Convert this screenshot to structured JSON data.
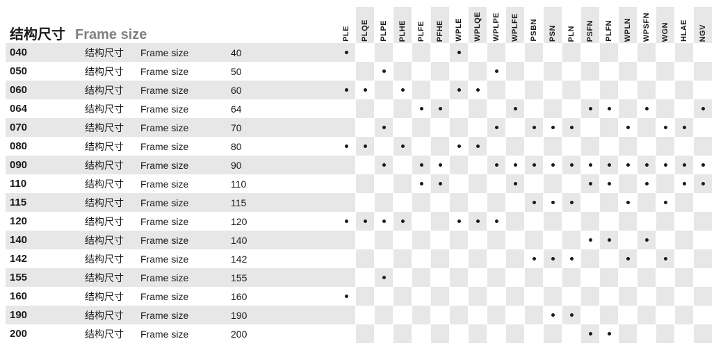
{
  "colors": {
    "zebra_light": "#ffffff",
    "zebra_dark": "#e7e7e7",
    "text": "#1a1a1a",
    "subtitle": "#808080",
    "dot": "#1a1a1a",
    "cell_border": "#ffffff"
  },
  "title": {
    "cn": "结构尺寸",
    "en": "Frame size"
  },
  "row_label": {
    "cn": "结构尺寸",
    "en": "Frame size"
  },
  "columns": [
    "PLE",
    "PLQE",
    "PLPE",
    "PLHE",
    "PLFE",
    "PFHE",
    "WPLE",
    "WPLQE",
    "WPLPE",
    "WPLFE",
    "PSBN",
    "PSN",
    "PLN",
    "PSFN",
    "PLFN",
    "WPLN",
    "WPSFN",
    "WGN",
    "HLAE",
    "NGV"
  ],
  "rows": [
    {
      "code": "040",
      "value": "40",
      "dots": [
        1,
        0,
        0,
        0,
        0,
        0,
        1,
        0,
        0,
        0,
        0,
        0,
        0,
        0,
        0,
        0,
        0,
        0,
        0,
        0
      ]
    },
    {
      "code": "050",
      "value": "50",
      "dots": [
        0,
        0,
        1,
        0,
        0,
        0,
        0,
        0,
        1,
        0,
        0,
        0,
        0,
        0,
        0,
        0,
        0,
        0,
        0,
        0
      ]
    },
    {
      "code": "060",
      "value": "60",
      "dots": [
        1,
        1,
        0,
        1,
        0,
        0,
        1,
        1,
        0,
        0,
        0,
        0,
        0,
        0,
        0,
        0,
        0,
        0,
        0,
        0
      ]
    },
    {
      "code": "064",
      "value": "64",
      "dots": [
        0,
        0,
        0,
        0,
        1,
        1,
        0,
        0,
        0,
        1,
        0,
        0,
        0,
        1,
        1,
        0,
        1,
        0,
        0,
        1
      ]
    },
    {
      "code": "070",
      "value": "70",
      "dots": [
        0,
        0,
        1,
        0,
        0,
        0,
        0,
        0,
        1,
        0,
        1,
        1,
        1,
        0,
        0,
        1,
        0,
        1,
        1,
        0
      ]
    },
    {
      "code": "080",
      "value": "80",
      "dots": [
        1,
        1,
        0,
        1,
        0,
        0,
        1,
        1,
        0,
        0,
        0,
        0,
        0,
        0,
        0,
        0,
        0,
        0,
        0,
        0
      ]
    },
    {
      "code": "090",
      "value": "90",
      "dots": [
        0,
        0,
        1,
        0,
        1,
        1,
        0,
        0,
        1,
        1,
        1,
        1,
        1,
        1,
        1,
        1,
        1,
        1,
        1,
        1
      ]
    },
    {
      "code": "110",
      "value": "110",
      "dots": [
        0,
        0,
        0,
        0,
        1,
        1,
        0,
        0,
        0,
        1,
        0,
        0,
        0,
        1,
        1,
        0,
        1,
        0,
        1,
        1
      ]
    },
    {
      "code": "115",
      "value": "115",
      "dots": [
        0,
        0,
        0,
        0,
        0,
        0,
        0,
        0,
        0,
        0,
        1,
        1,
        1,
        0,
        0,
        1,
        0,
        1,
        0,
        0
      ]
    },
    {
      "code": "120",
      "value": "120",
      "dots": [
        1,
        1,
        1,
        1,
        0,
        0,
        1,
        1,
        1,
        0,
        0,
        0,
        0,
        0,
        0,
        0,
        0,
        0,
        0,
        0
      ]
    },
    {
      "code": "140",
      "value": "140",
      "dots": [
        0,
        0,
        0,
        0,
        0,
        0,
        0,
        0,
        0,
        0,
        0,
        0,
        0,
        1,
        1,
        0,
        1,
        0,
        0,
        0
      ]
    },
    {
      "code": "142",
      "value": "142",
      "dots": [
        0,
        0,
        0,
        0,
        0,
        0,
        0,
        0,
        0,
        0,
        1,
        1,
        1,
        0,
        0,
        1,
        0,
        1,
        0,
        0
      ]
    },
    {
      "code": "155",
      "value": "155",
      "dots": [
        0,
        0,
        1,
        0,
        0,
        0,
        0,
        0,
        0,
        0,
        0,
        0,
        0,
        0,
        0,
        0,
        0,
        0,
        0,
        0
      ]
    },
    {
      "code": "160",
      "value": "160",
      "dots": [
        1,
        0,
        0,
        0,
        0,
        0,
        0,
        0,
        0,
        0,
        0,
        0,
        0,
        0,
        0,
        0,
        0,
        0,
        0,
        0
      ]
    },
    {
      "code": "190",
      "value": "190",
      "dots": [
        0,
        0,
        0,
        0,
        0,
        0,
        0,
        0,
        0,
        0,
        0,
        1,
        1,
        0,
        0,
        0,
        0,
        0,
        0,
        0
      ]
    },
    {
      "code": "200",
      "value": "200",
      "dots": [
        0,
        0,
        0,
        0,
        0,
        0,
        0,
        0,
        0,
        0,
        0,
        0,
        0,
        1,
        1,
        0,
        0,
        0,
        0,
        0
      ]
    }
  ]
}
